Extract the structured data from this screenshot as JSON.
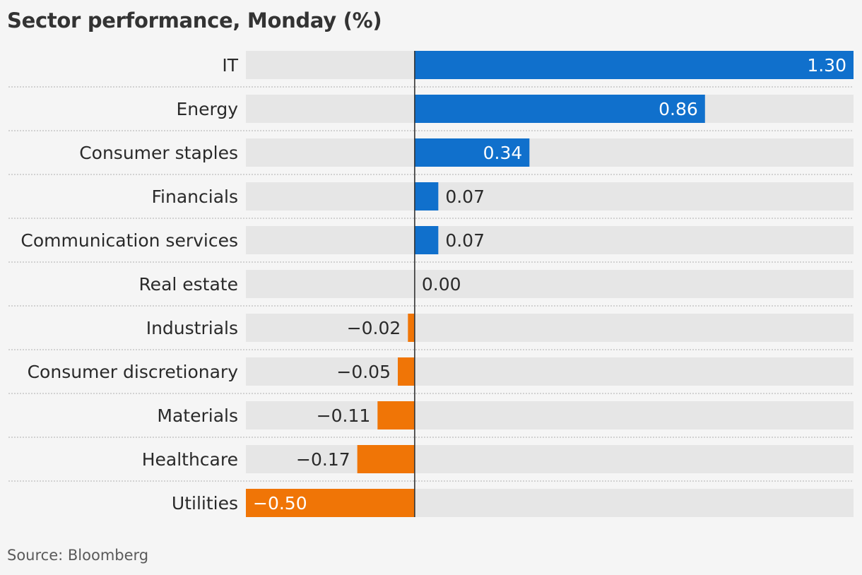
{
  "title": "Sector performance, Monday (%)",
  "source": "Source: Bloomberg",
  "colors": {
    "positive": "#1070cc",
    "negative": "#f07506",
    "track": "#e6e6e6",
    "axis": "#333333",
    "separator": "#bdbdbd"
  },
  "chart_data": {
    "type": "bar",
    "orientation": "horizontal",
    "title": "Sector performance, Monday (%)",
    "xlabel": "",
    "ylabel": "",
    "xlim": [
      -0.5,
      1.3
    ],
    "grid": false,
    "legend": "none",
    "categories": [
      "IT",
      "Energy",
      "Consumer staples",
      "Financials",
      "Communication services",
      "Real estate",
      "Industrials",
      "Consumer discretionary",
      "Materials",
      "Healthcare",
      "Utilities"
    ],
    "values": [
      1.3,
      0.86,
      0.34,
      0.07,
      0.07,
      0.0,
      -0.02,
      -0.05,
      -0.11,
      -0.17,
      -0.5
    ],
    "value_labels": [
      "1.30",
      "0.86",
      "0.34",
      "0.07",
      "0.07",
      "0.00",
      "−0.02",
      "−0.05",
      "−0.11",
      "−0.17",
      "−0.50"
    ]
  }
}
